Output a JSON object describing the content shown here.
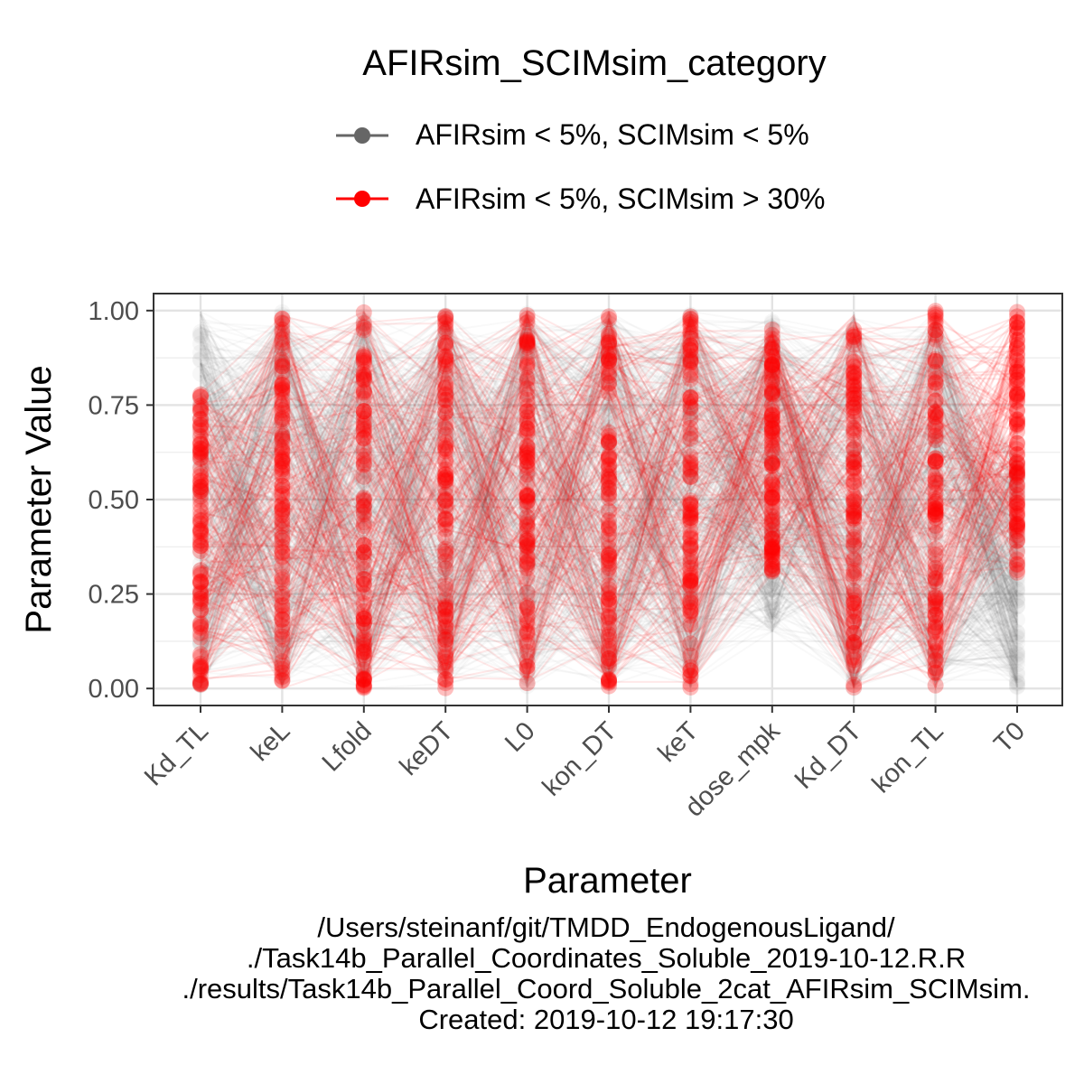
{
  "legend": {
    "title": "AFIRsim_SCIMsim_category",
    "items": [
      {
        "label": "AFIRsim < 5%, SCIMsim < 5%",
        "color": "#666666"
      },
      {
        "label": "AFIRsim < 5%, SCIMsim > 30%",
        "color": "#ff0000"
      }
    ]
  },
  "caption": {
    "line1": "/Users/steinanf/git/TMDD_EndogenousLigand/",
    "line2": "./Task14b_Parallel_Coordinates_Soluble_2019-10-12.R.R",
    "line3": "./results/Task14b_Parallel_Coord_Soluble_2cat_AFIRsim_SCIMsim.",
    "line4": "Created: 2019-10-12 19:17:30"
  },
  "chart_data": {
    "type": "parallel_coordinates",
    "xlabel": "Parameter",
    "ylabel": "Parameter Value",
    "categories": [
      "Kd_TL",
      "keL",
      "Lfold",
      "keDT",
      "L0",
      "kon_DT",
      "keT",
      "dose_mpk",
      "Kd_DT",
      "kon_TL",
      "T0"
    ],
    "ylim": [
      -0.045,
      1.045
    ],
    "yticks": [
      0,
      0.25,
      0.5,
      0.75,
      1.0
    ],
    "ytick_labels": [
      "0.00",
      "0.25",
      "0.50",
      "0.75",
      "1.00"
    ],
    "grid": true,
    "series": [
      {
        "name": "AFIRsim < 5%, SCIMsim < 5%",
        "color": "#595959",
        "n_lines": 550,
        "line_opacity": 0.035,
        "point_opacity": 0.05,
        "ranges": [
          [
            0.0,
            1.0
          ],
          [
            0.0,
            1.0
          ],
          [
            0.0,
            1.0
          ],
          [
            0.0,
            1.0
          ],
          [
            0.0,
            1.0
          ],
          [
            0.0,
            1.0
          ],
          [
            0.0,
            1.0
          ],
          [
            0.15,
            0.98
          ],
          [
            0.0,
            1.0
          ],
          [
            0.0,
            1.0
          ],
          [
            0.0,
            0.62
          ]
        ]
      },
      {
        "name": "AFIRsim < 5%, SCIMsim > 30%",
        "color": "#ff0000",
        "n_lines": 200,
        "line_opacity": 0.09,
        "point_opacity": 0.25,
        "ranges": [
          [
            0.0,
            0.78
          ],
          [
            0.0,
            1.0
          ],
          [
            0.0,
            1.0
          ],
          [
            0.0,
            1.0
          ],
          [
            0.0,
            1.0
          ],
          [
            0.0,
            1.0
          ],
          [
            0.0,
            1.0
          ],
          [
            0.3,
            0.95
          ],
          [
            0.0,
            1.0
          ],
          [
            0.0,
            1.0
          ],
          [
            0.3,
            1.0
          ]
        ]
      }
    ]
  }
}
